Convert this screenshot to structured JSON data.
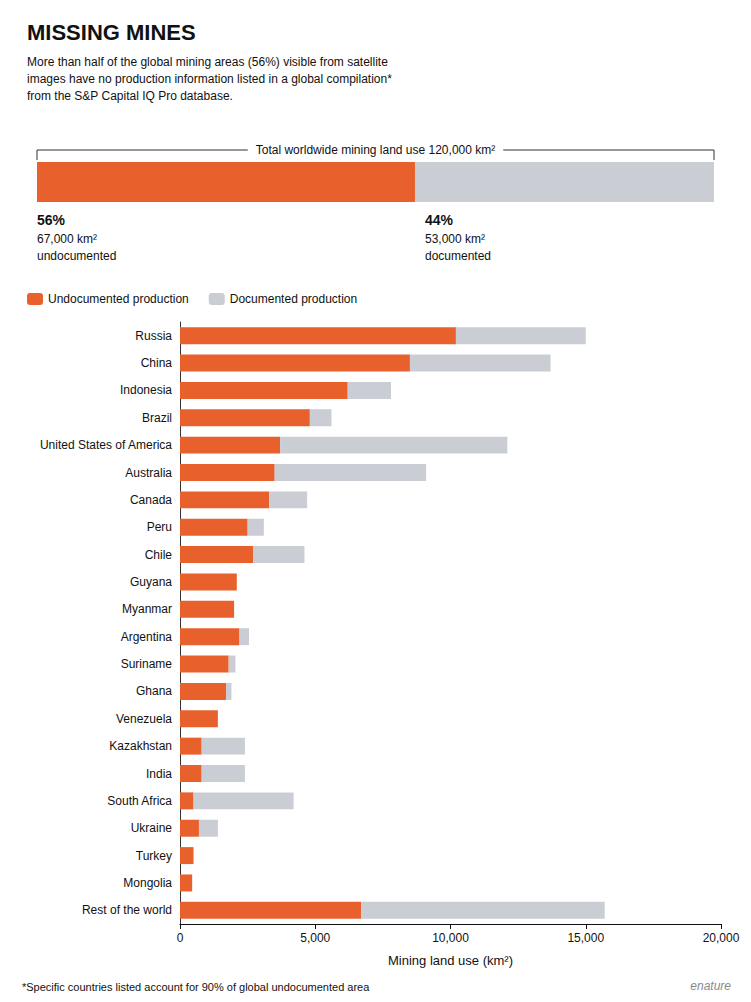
{
  "chart_data": [
    {
      "type": "bar",
      "orientation": "horizontal",
      "stacked": true,
      "title": "MISSING MINES",
      "subtitle": "More than half of the global mining areas (56%) visible from satellite\nimages have no production information listed in a global compilation*\nfrom the S&P Capital IQ Pro database.",
      "annotations": [
        "Total worldwide mining land use 120,000 km²"
      ],
      "categories": [
        null
      ],
      "series": [
        {
          "name": "undocumented",
          "color": "#E8602C",
          "values": [
            55.83
          ],
          "value_labels": [
            "56%"
          ],
          "annotations": [
            "67,000 km²"
          ]
        },
        {
          "name": "documented",
          "color": "#CACDD4",
          "values": [
            44.17
          ],
          "value_labels": [
            "44%"
          ],
          "annotations": [
            "53,000 km²"
          ]
        }
      ],
      "xlim": [
        0,
        100
      ],
      "tick_labels": false
    },
    {
      "type": "bar",
      "orientation": "horizontal",
      "stacked": true,
      "categories": [
        "Russia",
        "China",
        "Indonesia",
        "Brazil",
        "United States of America",
        "Australia",
        "Canada",
        "Peru",
        "Chile",
        "Guyana",
        "Myanmar",
        "Argentina",
        "Suriname",
        "Ghana",
        "Venezuela",
        "Kazakhstan",
        "India",
        "South Africa",
        "Ukraine",
        "Turkey",
        "Mongolia",
        "Rest of the world"
      ],
      "series": [
        {
          "name": "Undocumented production",
          "color": "#E8602C",
          "values": [
            10200,
            8500,
            6200,
            4800,
            3700,
            3500,
            3300,
            2500,
            2700,
            2100,
            2000,
            2200,
            1800,
            1700,
            1400,
            800,
            800,
            500,
            700,
            500,
            450,
            6700
          ]
        },
        {
          "name": "Documented production",
          "color": "#CACDD4",
          "values": [
            4800,
            5200,
            1600,
            800,
            8400,
            5600,
            1400,
            600,
            1900,
            0,
            0,
            350,
            250,
            200,
            0,
            1600,
            1600,
            3700,
            700,
            0,
            0,
            9000
          ]
        }
      ],
      "xlabel": "Mining land use (km²)",
      "xlim": [
        0,
        20000
      ],
      "xticks": [
        0,
        {
          "value": 5000,
          "label": "5,000"
        },
        {
          "value": 10000,
          "label": "10,000"
        },
        {
          "value": 15000,
          "label": "15,000"
        },
        {
          "value": 20000,
          "label": "20,000"
        }
      ],
      "grid": false,
      "legend": "upper left",
      "annotations": [
        "*Specific countries listed account for 90% of global undocumented area",
        "enature"
      ]
    }
  ]
}
